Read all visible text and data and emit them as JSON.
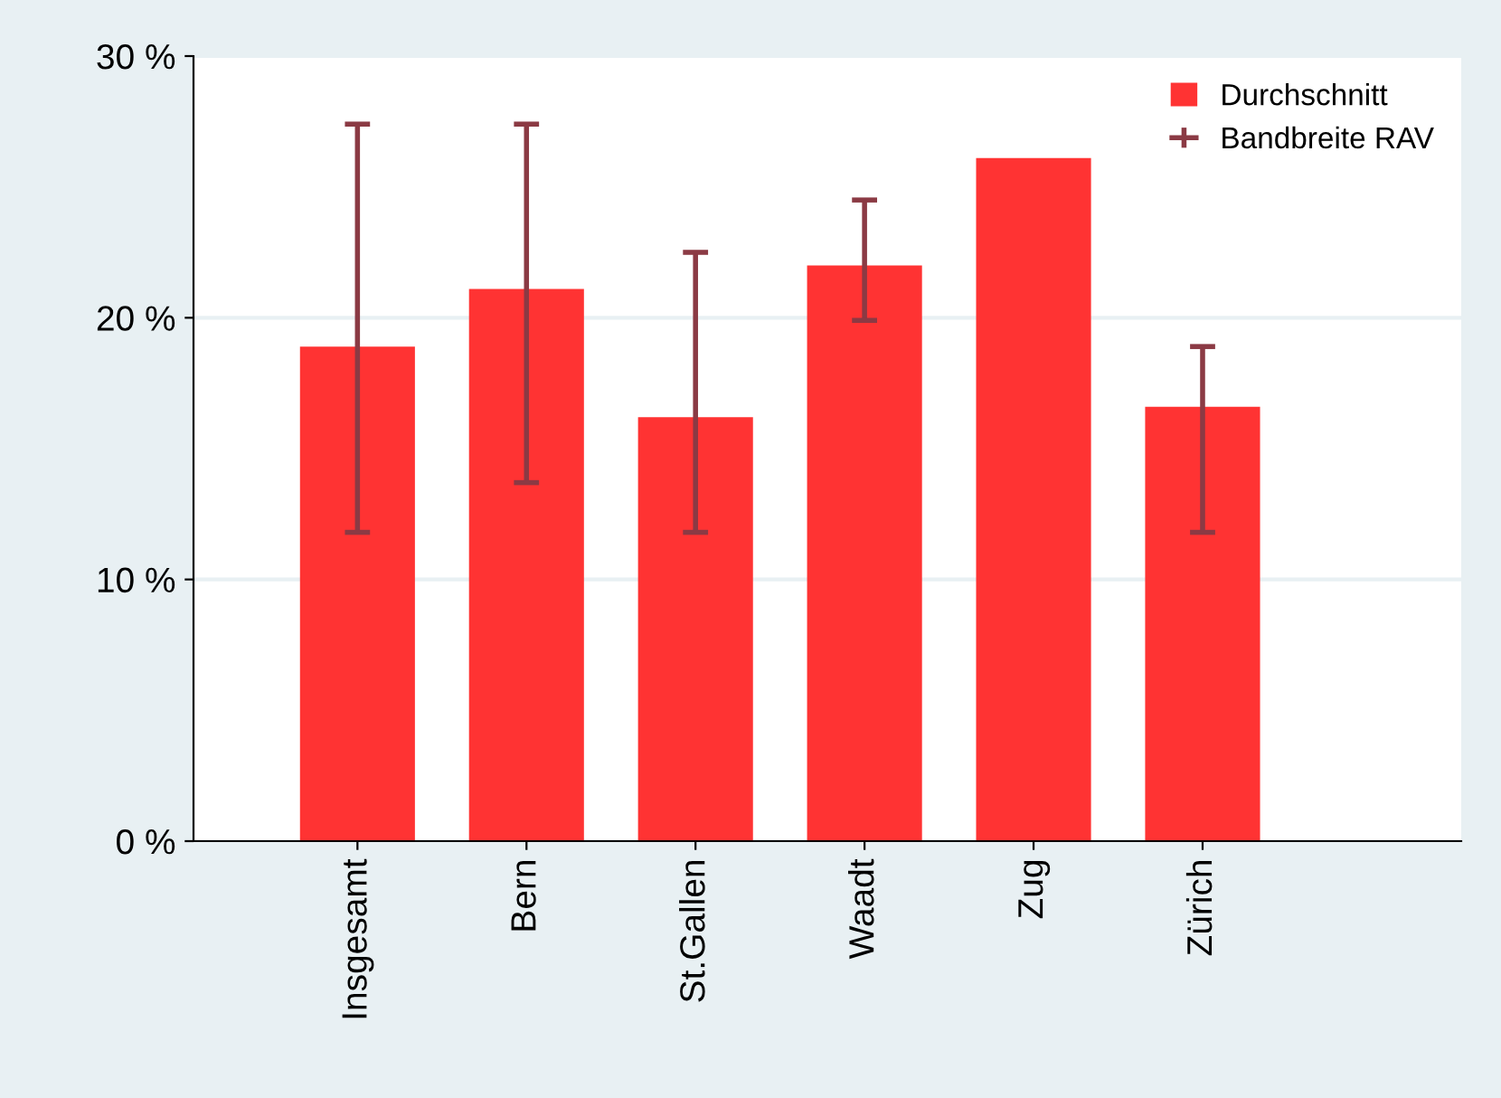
{
  "chart_data": {
    "type": "bar",
    "categories": [
      "Insgesamt",
      "Bern",
      "St.Gallen",
      "Waadt",
      "Zug",
      "Zürich"
    ],
    "series": [
      {
        "name": "Durchschnitt",
        "color": "#ff3333",
        "values": [
          18.9,
          21.1,
          16.2,
          22.0,
          26.1,
          16.6
        ],
        "errors": [
          [
            11.8,
            27.4
          ],
          [
            13.7,
            27.4
          ],
          [
            11.8,
            22.5
          ],
          [
            19.9,
            24.5
          ],
          null,
          [
            11.8,
            18.9
          ]
        ]
      }
    ],
    "annotations": [
      "Bandbreite RAV"
    ],
    "ylim": [
      0,
      30
    ],
    "yticks": [
      {
        "value": 0,
        "label": "0 %"
      },
      {
        "value": 10,
        "label": "10 %"
      },
      {
        "value": 20,
        "label": "20 %"
      },
      {
        "value": 30,
        "label": "30 %"
      }
    ],
    "grid": "y",
    "legend": "top right"
  }
}
